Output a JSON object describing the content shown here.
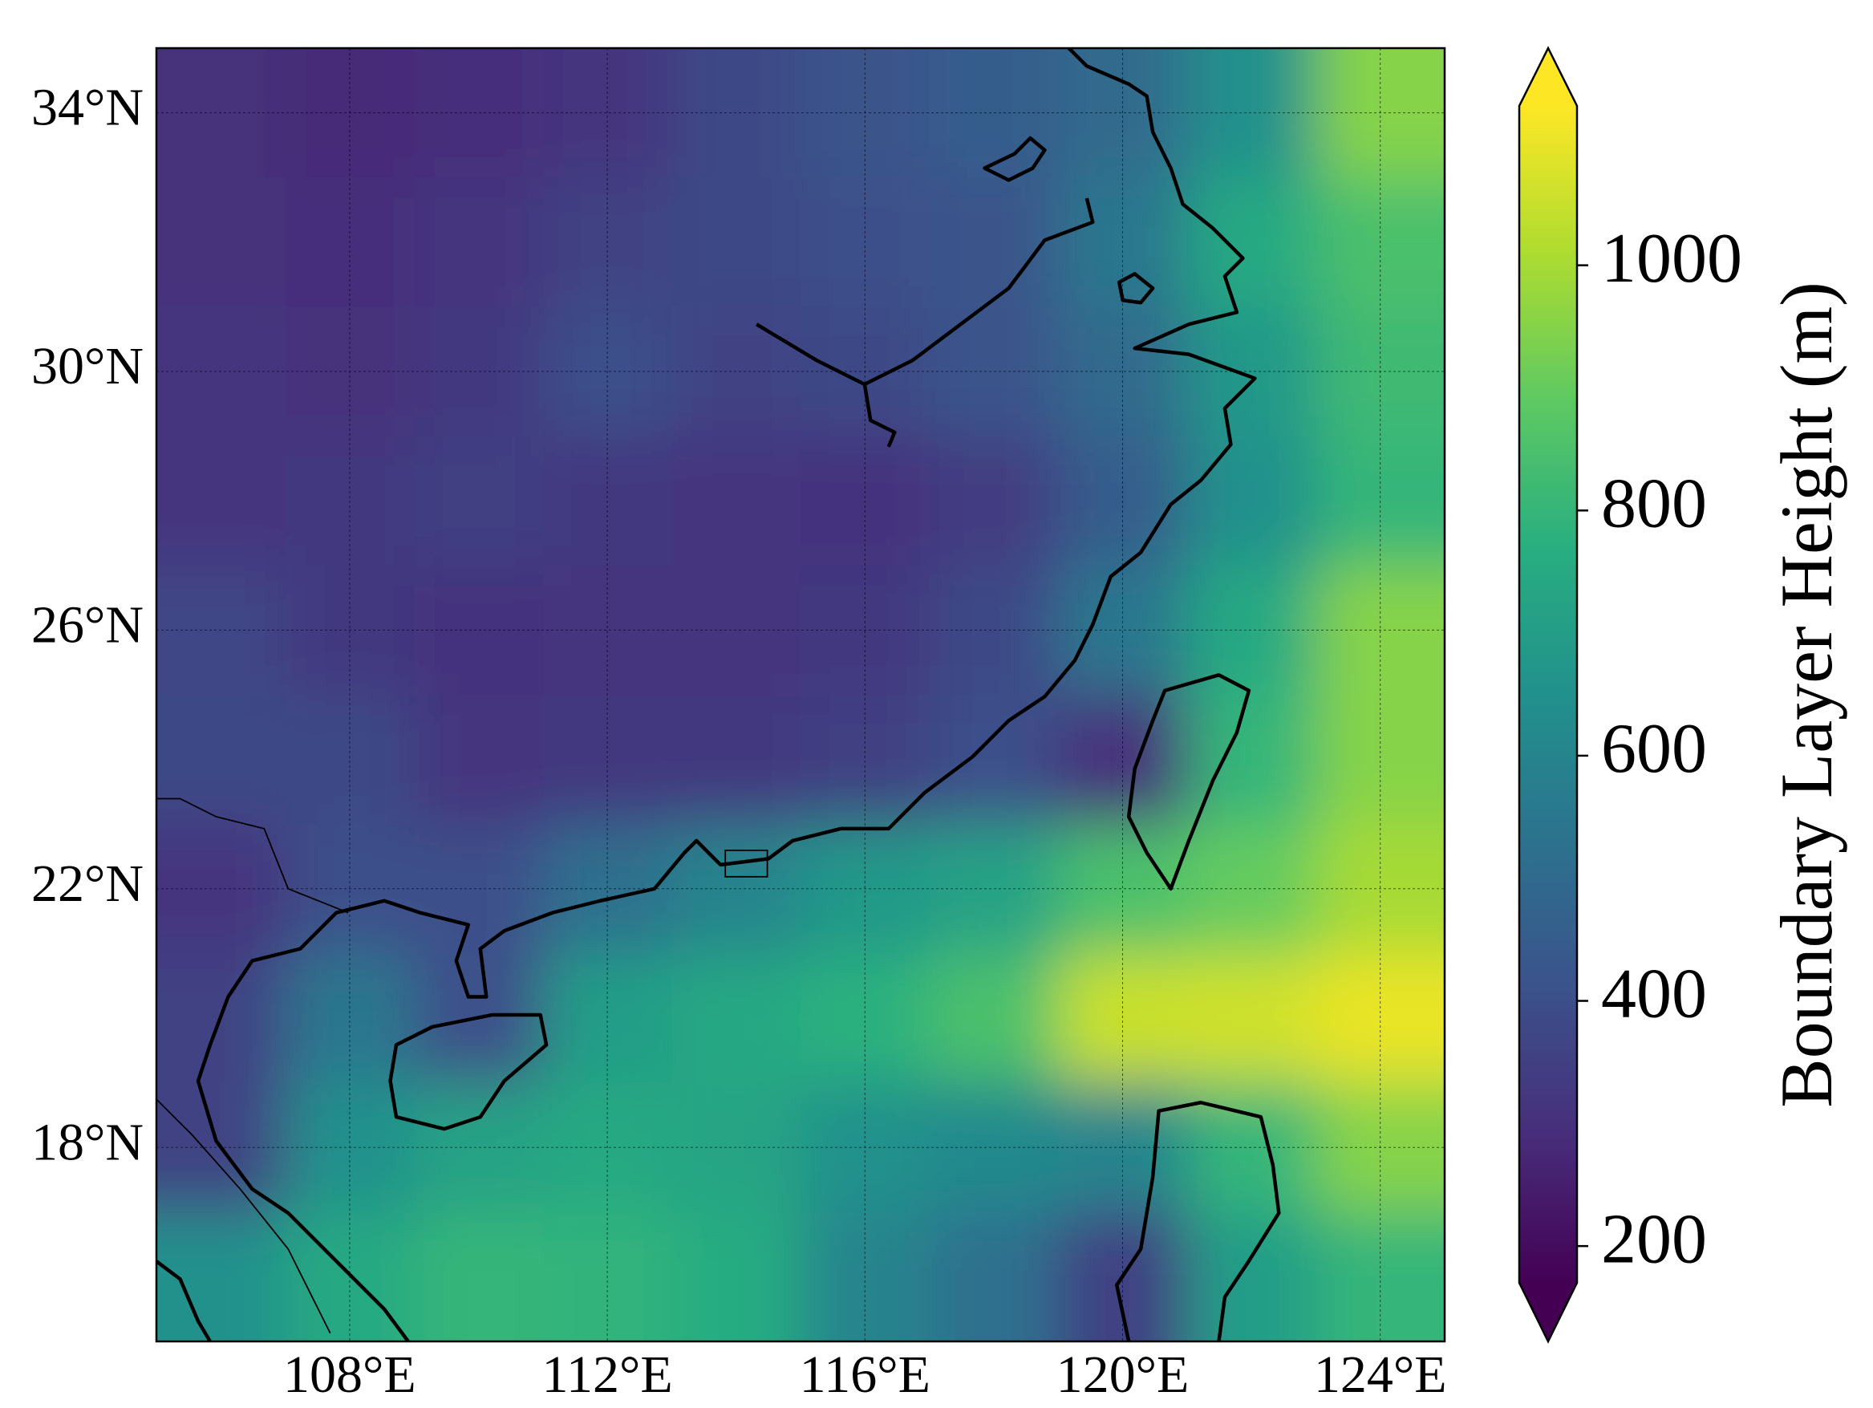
{
  "chart_data": {
    "type": "heatmap",
    "cmap": "viridis",
    "colorbar_label": "Boundary Layer Height  (m)",
    "xlim": [
      105,
      125
    ],
    "ylim": [
      15,
      35
    ],
    "xticks": [
      {
        "value": 108,
        "label": "108°E"
      },
      {
        "value": 112,
        "label": "112°E"
      },
      {
        "value": 116,
        "label": "116°E"
      },
      {
        "value": 120,
        "label": "120°E"
      },
      {
        "value": 124,
        "label": "124°E"
      }
    ],
    "yticks": [
      {
        "value": 18,
        "label": "18°N"
      },
      {
        "value": 22,
        "label": "22°N"
      },
      {
        "value": 26,
        "label": "26°N"
      },
      {
        "value": 30,
        "label": "30°N"
      },
      {
        "value": 34,
        "label": "34°N"
      }
    ],
    "grid": true,
    "clim": [
      170,
      1130
    ],
    "cticks": [
      200,
      400,
      600,
      800,
      1000
    ],
    "x": [
      106,
      108,
      110,
      112,
      114,
      116,
      118,
      120,
      122,
      124
    ],
    "y": [
      34,
      32,
      30,
      28,
      26,
      24,
      22,
      20,
      18,
      16
    ],
    "z": [
      [
        300,
        280,
        290,
        320,
        380,
        420,
        450,
        500,
        650,
        950
      ],
      [
        300,
        290,
        320,
        360,
        380,
        400,
        420,
        550,
        750,
        850
      ],
      [
        320,
        300,
        330,
        400,
        360,
        380,
        420,
        500,
        680,
        820
      ],
      [
        320,
        330,
        350,
        330,
        320,
        310,
        340,
        450,
        650,
        800
      ],
      [
        370,
        330,
        310,
        320,
        320,
        330,
        380,
        550,
        750,
        950
      ],
      [
        380,
        380,
        320,
        330,
        330,
        350,
        400,
        300,
        800,
        950
      ],
      [
        320,
        400,
        400,
        520,
        600,
        680,
        720,
        850,
        900,
        1000
      ],
      [
        360,
        550,
        400,
        700,
        740,
        780,
        850,
        1050,
        1060,
        1100
      ],
      [
        360,
        650,
        720,
        750,
        730,
        650,
        620,
        600,
        800,
        950
      ],
      [
        650,
        750,
        800,
        790,
        760,
        600,
        520,
        350,
        700,
        800
      ]
    ]
  }
}
